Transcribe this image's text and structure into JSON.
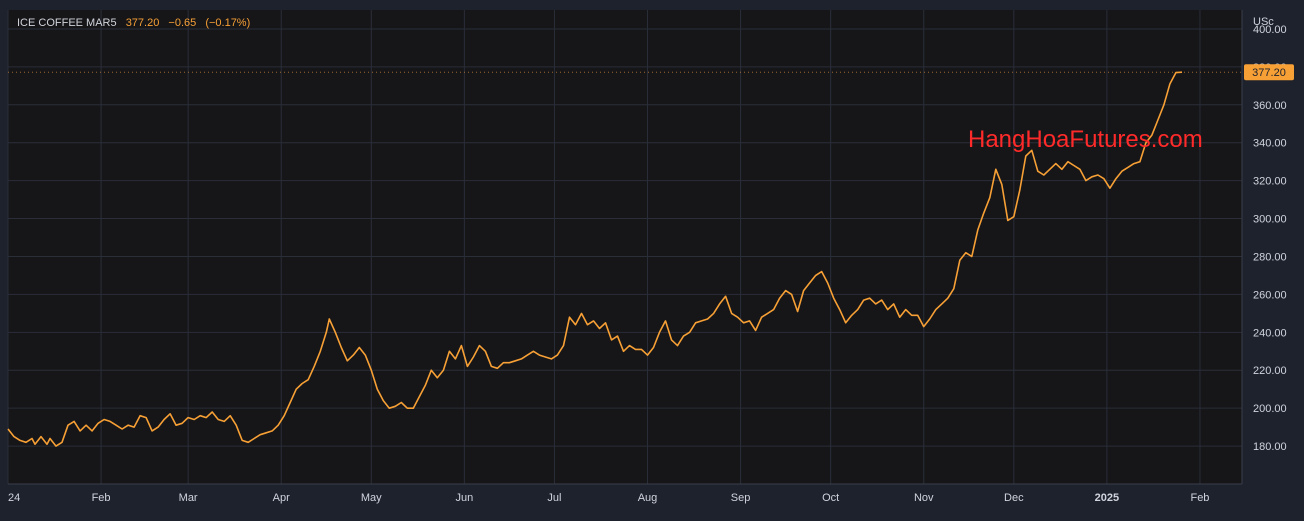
{
  "legend": {
    "symbol": "ICE COFFEE MAR5",
    "last": "377.20",
    "change": "−0.65",
    "change_pct": "(−0.17%)"
  },
  "watermark": "HangHoaFutures.com",
  "colors": {
    "background": "#1e222d",
    "plot_bg": "#161619",
    "line": "#f7a035",
    "grid": "#2a2e39",
    "axis_text": "#d1d4dc",
    "watermark": "#ff2a2a"
  },
  "chart_data": {
    "type": "line",
    "ylabel": "USc",
    "ylim": [
      160,
      410
    ],
    "y_ticks": [
      180,
      200,
      220,
      240,
      260,
      280,
      300,
      320,
      340,
      360,
      380,
      400
    ],
    "y_tick_labels": [
      "180.00",
      "200.00",
      "220.00",
      "240.00",
      "260.00",
      "280.00",
      "300.00",
      "320.00",
      "340.00",
      "360.00",
      "380.00",
      "400.00"
    ],
    "last_value_label": "377.20",
    "grid": true,
    "x_ticks": [
      {
        "label": "24",
        "x": 0
      },
      {
        "label": "Feb",
        "x": 31
      },
      {
        "label": "Mar",
        "x": 60
      },
      {
        "label": "Apr",
        "x": 91
      },
      {
        "label": "May",
        "x": 121
      },
      {
        "label": "Jun",
        "x": 152
      },
      {
        "label": "Jul",
        "x": 182
      },
      {
        "label": "Aug",
        "x": 213
      },
      {
        "label": "Sep",
        "x": 244
      },
      {
        "label": "Oct",
        "x": 274
      },
      {
        "label": "Nov",
        "x": 305
      },
      {
        "label": "Dec",
        "x": 335
      },
      {
        "label": "2025",
        "x": 366
      },
      {
        "label": "Feb",
        "x": 397
      }
    ],
    "x_unit": "days since 2024-01-01",
    "xlim": [
      0,
      411
    ],
    "series": [
      {
        "name": "ICE COFFEE MAR5",
        "points": [
          [
            0,
            189
          ],
          [
            2,
            185
          ],
          [
            4,
            183
          ],
          [
            6,
            182
          ],
          [
            8,
            184
          ],
          [
            9,
            181
          ],
          [
            11,
            185
          ],
          [
            13,
            181
          ],
          [
            14,
            184
          ],
          [
            16,
            180
          ],
          [
            18,
            182
          ],
          [
            20,
            191
          ],
          [
            22,
            193
          ],
          [
            24,
            188
          ],
          [
            26,
            191
          ],
          [
            28,
            188
          ],
          [
            30,
            192
          ],
          [
            32,
            194
          ],
          [
            34,
            193
          ],
          [
            36,
            191
          ],
          [
            38,
            189
          ],
          [
            40,
            191
          ],
          [
            42,
            190
          ],
          [
            44,
            196
          ],
          [
            46,
            195
          ],
          [
            48,
            188
          ],
          [
            50,
            190
          ],
          [
            52,
            194
          ],
          [
            54,
            197
          ],
          [
            56,
            191
          ],
          [
            58,
            192
          ],
          [
            60,
            195
          ],
          [
            62,
            194
          ],
          [
            64,
            196
          ],
          [
            66,
            195
          ],
          [
            68,
            198
          ],
          [
            70,
            194
          ],
          [
            72,
            193
          ],
          [
            74,
            196
          ],
          [
            76,
            191
          ],
          [
            78,
            183
          ],
          [
            80,
            182
          ],
          [
            82,
            184
          ],
          [
            84,
            186
          ],
          [
            86,
            187
          ],
          [
            88,
            188
          ],
          [
            90,
            191
          ],
          [
            92,
            196
          ],
          [
            94,
            203
          ],
          [
            96,
            210
          ],
          [
            98,
            213
          ],
          [
            100,
            215
          ],
          [
            102,
            222
          ],
          [
            104,
            230
          ],
          [
            106,
            240
          ],
          [
            107,
            247
          ],
          [
            109,
            240
          ],
          [
            111,
            232
          ],
          [
            113,
            225
          ],
          [
            115,
            228
          ],
          [
            117,
            232
          ],
          [
            119,
            228
          ],
          [
            121,
            220
          ],
          [
            123,
            210
          ],
          [
            125,
            204
          ],
          [
            127,
            200
          ],
          [
            129,
            201
          ],
          [
            131,
            203
          ],
          [
            133,
            200
          ],
          [
            135,
            200
          ],
          [
            137,
            206
          ],
          [
            139,
            212
          ],
          [
            141,
            220
          ],
          [
            143,
            216
          ],
          [
            145,
            220
          ],
          [
            147,
            230
          ],
          [
            149,
            226
          ],
          [
            151,
            233
          ],
          [
            153,
            222
          ],
          [
            155,
            227
          ],
          [
            157,
            233
          ],
          [
            159,
            230
          ],
          [
            161,
            222
          ],
          [
            163,
            221
          ],
          [
            165,
            224
          ],
          [
            167,
            224
          ],
          [
            169,
            225
          ],
          [
            171,
            226
          ],
          [
            173,
            228
          ],
          [
            175,
            230
          ],
          [
            177,
            228
          ],
          [
            179,
            227
          ],
          [
            181,
            226
          ],
          [
            183,
            228
          ],
          [
            185,
            233
          ],
          [
            187,
            248
          ],
          [
            189,
            244
          ],
          [
            191,
            250
          ],
          [
            193,
            244
          ],
          [
            195,
            246
          ],
          [
            197,
            242
          ],
          [
            199,
            245
          ],
          [
            201,
            236
          ],
          [
            203,
            238
          ],
          [
            205,
            230
          ],
          [
            207,
            233
          ],
          [
            209,
            231
          ],
          [
            211,
            231
          ],
          [
            213,
            228
          ],
          [
            215,
            232
          ],
          [
            217,
            240
          ],
          [
            219,
            246
          ],
          [
            221,
            236
          ],
          [
            223,
            233
          ],
          [
            225,
            238
          ],
          [
            227,
            240
          ],
          [
            229,
            245
          ],
          [
            231,
            246
          ],
          [
            233,
            247
          ],
          [
            235,
            250
          ],
          [
            237,
            255
          ],
          [
            239,
            259
          ],
          [
            241,
            250
          ],
          [
            243,
            248
          ],
          [
            245,
            245
          ],
          [
            247,
            246
          ],
          [
            249,
            241
          ],
          [
            251,
            248
          ],
          [
            253,
            250
          ],
          [
            255,
            252
          ],
          [
            257,
            258
          ],
          [
            259,
            262
          ],
          [
            261,
            260
          ],
          [
            263,
            251
          ],
          [
            265,
            262
          ],
          [
            267,
            266
          ],
          [
            269,
            270
          ],
          [
            271,
            272
          ],
          [
            273,
            266
          ],
          [
            275,
            258
          ],
          [
            277,
            252
          ],
          [
            279,
            245
          ],
          [
            281,
            249
          ],
          [
            283,
            252
          ],
          [
            285,
            257
          ],
          [
            287,
            258
          ],
          [
            289,
            255
          ],
          [
            291,
            257
          ],
          [
            293,
            252
          ],
          [
            295,
            255
          ],
          [
            297,
            248
          ],
          [
            299,
            252
          ],
          [
            301,
            249
          ],
          [
            303,
            249
          ],
          [
            305,
            243
          ],
          [
            307,
            247
          ],
          [
            309,
            252
          ],
          [
            311,
            255
          ],
          [
            313,
            258
          ],
          [
            315,
            263
          ],
          [
            317,
            278
          ],
          [
            319,
            282
          ],
          [
            321,
            280
          ],
          [
            323,
            294
          ],
          [
            325,
            303
          ],
          [
            327,
            311
          ],
          [
            329,
            326
          ],
          [
            331,
            318
          ],
          [
            333,
            299
          ],
          [
            335,
            301
          ],
          [
            337,
            315
          ],
          [
            339,
            333
          ],
          [
            341,
            336
          ],
          [
            343,
            325
          ],
          [
            345,
            323
          ],
          [
            347,
            326
          ],
          [
            349,
            329
          ],
          [
            351,
            326
          ],
          [
            353,
            330
          ],
          [
            355,
            328
          ],
          [
            357,
            326
          ],
          [
            359,
            320
          ],
          [
            361,
            322
          ],
          [
            363,
            323
          ],
          [
            365,
            321
          ],
          [
            367,
            316
          ],
          [
            369,
            321
          ],
          [
            371,
            325
          ],
          [
            373,
            327
          ],
          [
            375,
            329
          ],
          [
            377,
            330
          ],
          [
            379,
            340
          ],
          [
            381,
            344
          ],
          [
            383,
            352
          ],
          [
            385,
            360
          ],
          [
            387,
            371
          ],
          [
            389,
            377
          ],
          [
            391,
            377.2
          ]
        ]
      }
    ]
  }
}
